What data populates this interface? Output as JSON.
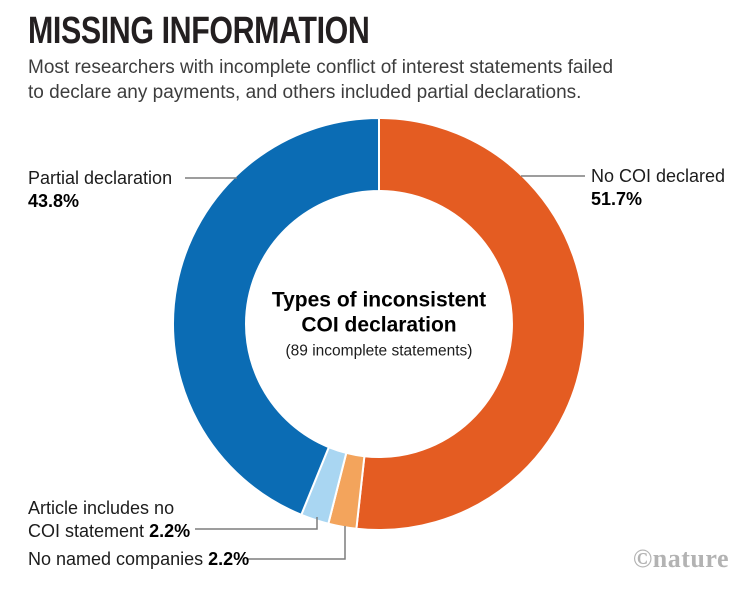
{
  "header": {
    "title": "MISSING INFORMATION",
    "subtitle_line1": "Most researchers with incomplete conflict of interest statements failed",
    "subtitle_line2": "to declare any payments, and others included partial declarations."
  },
  "chart_data": {
    "type": "pie",
    "subtype": "donut",
    "title": "Types of inconsistent COI declaration",
    "note": "(89 incomplete statements)",
    "start_angle_deg": 0,
    "direction": "clockwise",
    "separator_color": "#ffffff",
    "segments": [
      {
        "label": "No COI declared",
        "value": 51.7,
        "color": "#e45c22"
      },
      {
        "label": "No named companies",
        "value": 2.2,
        "color": "#f3a45c"
      },
      {
        "label": "Article includes no COI statement",
        "value": 2.2,
        "color": "#a9d6f2"
      },
      {
        "label": "Partial declaration",
        "value": 43.8,
        "color": "#0b6cb4"
      }
    ]
  },
  "center": {
    "line1": "Types of inconsistent",
    "line2": "COI declaration",
    "note": "(89 incomplete statements)"
  },
  "labels": {
    "partial": {
      "name": "Partial declaration",
      "pct": "43.8%"
    },
    "no_coi": {
      "name": "No COI declared",
      "pct": "51.7%"
    },
    "article": {
      "line1": "Article includes no",
      "line2": "COI statement",
      "pct": "2.2%"
    },
    "companies": {
      "name": "No named companies",
      "pct": "2.2%"
    }
  },
  "leader_line_color": "#7d7d7d",
  "watermark": "©nature"
}
